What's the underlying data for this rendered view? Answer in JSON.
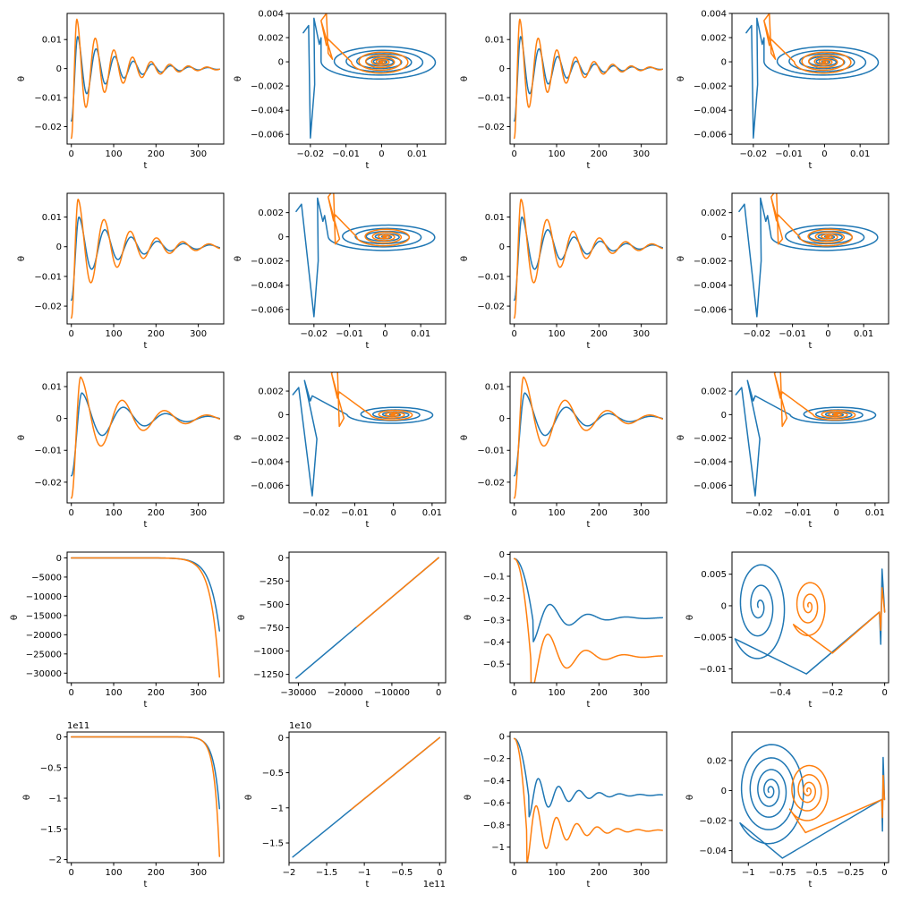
{
  "figure": {
    "colors": [
      "#1f77b4",
      "#ff7f0e"
    ]
  },
  "chart_data": [
    {
      "type": "line",
      "kind": "time",
      "xlabel": "t",
      "ylabel": "θ",
      "xlim": [
        -10,
        360
      ],
      "ylim": [
        -0.026,
        0.019
      ],
      "xticks": [
        0,
        100,
        200,
        300
      ],
      "yticks": [
        -0.02,
        -0.01,
        0.0,
        0.01
      ],
      "series": [
        {
          "y0": -0.018,
          "peak": 0.011,
          "lag": 15,
          "period": 44,
          "tau": 90,
          "end": 0.0
        },
        {
          "y0": -0.024,
          "peak": 0.017,
          "lag": 13,
          "period": 44,
          "tau": 90,
          "end": 0.0
        }
      ]
    },
    {
      "type": "line",
      "kind": "phase",
      "xlabel": "t",
      "ylabel": "θ",
      "xlim": [
        -0.026,
        0.018
      ],
      "ylim": [
        -0.0068,
        0.004
      ],
      "xticks": [
        -0.02,
        -0.01,
        0.0,
        0.01
      ],
      "yticks": [
        -0.006,
        -0.004,
        -0.002,
        0.0,
        0.002,
        0.004
      ],
      "series": [
        {
          "rx": 0.017,
          "ry": 0.0015,
          "turns": 7,
          "center": [
            0.0,
            0.0
          ],
          "start": [
            -0.022,
            0.0024
          ],
          "dip": [
            -0.02,
            -0.0063
          ],
          "top": [
            -0.019,
            0.0036
          ]
        },
        {
          "rx": 0.0085,
          "ry": 0.001,
          "turns": 6,
          "center": [
            0.0,
            0.0
          ],
          "start": [
            -0.017,
            0.0034
          ],
          "dip": [
            -0.015,
            0.0007
          ],
          "top": [
            -0.017,
            0.0034
          ]
        }
      ]
    },
    {
      "type": "line",
      "kind": "time",
      "xlabel": "t",
      "ylabel": "θ",
      "xlim": [
        -10,
        360
      ],
      "ylim": [
        -0.026,
        0.019
      ],
      "xticks": [
        0,
        100,
        200,
        300
      ],
      "yticks": [
        -0.02,
        -0.01,
        0.0,
        0.01
      ],
      "series": [
        {
          "y0": -0.018,
          "peak": 0.011,
          "lag": 15,
          "period": 44,
          "tau": 90,
          "end": 0.0
        },
        {
          "y0": -0.024,
          "peak": 0.017,
          "lag": 13,
          "period": 44,
          "tau": 90,
          "end": 0.0
        }
      ]
    },
    {
      "type": "line",
      "kind": "phase",
      "xlabel": "t",
      "ylabel": "θ",
      "xlim": [
        -0.026,
        0.018
      ],
      "ylim": [
        -0.0068,
        0.004
      ],
      "xticks": [
        -0.02,
        -0.01,
        0.0,
        0.01
      ],
      "yticks": [
        -0.006,
        -0.004,
        -0.002,
        0.0,
        0.002,
        0.004
      ],
      "series": [
        {
          "rx": 0.017,
          "ry": 0.0015,
          "turns": 7,
          "center": [
            0.0,
            0.0
          ],
          "start": [
            -0.022,
            0.0024
          ],
          "dip": [
            -0.02,
            -0.0063
          ],
          "top": [
            -0.019,
            0.0036
          ]
        },
        {
          "rx": 0.0085,
          "ry": 0.001,
          "turns": 6,
          "center": [
            0.0,
            0.0
          ],
          "start": [
            -0.017,
            0.0034
          ],
          "dip": [
            -0.015,
            0.0007
          ],
          "top": [
            -0.017,
            0.0034
          ]
        }
      ]
    },
    {
      "type": "line",
      "kind": "time",
      "xlabel": "t",
      "ylabel": "θ",
      "xlim": [
        -10,
        360
      ],
      "ylim": [
        -0.026,
        0.018
      ],
      "xticks": [
        0,
        100,
        200,
        300
      ],
      "yticks": [
        -0.02,
        -0.01,
        0.0,
        0.01
      ],
      "series": [
        {
          "y0": -0.018,
          "peak": 0.01,
          "lag": 18,
          "period": 62,
          "tau": 110,
          "end": 0.0
        },
        {
          "y0": -0.024,
          "peak": 0.016,
          "lag": 16,
          "period": 62,
          "tau": 110,
          "end": 0.0
        }
      ]
    },
    {
      "type": "line",
      "kind": "phase",
      "xlabel": "t",
      "ylabel": "θ",
      "xlim": [
        -0.027,
        0.017
      ],
      "ylim": [
        -0.0072,
        0.0036
      ],
      "xticks": [
        -0.02,
        -0.01,
        0.0,
        0.01
      ],
      "yticks": [
        -0.006,
        -0.004,
        -0.002,
        0.0,
        0.002
      ],
      "series": [
        {
          "rx": 0.016,
          "ry": 0.0012,
          "turns": 6,
          "center": [
            0.0,
            0.0
          ],
          "start": [
            -0.025,
            0.0021
          ],
          "dip": [
            -0.02,
            -0.0066
          ],
          "top": [
            -0.019,
            0.0032
          ]
        },
        {
          "rx": 0.008,
          "ry": 0.0008,
          "turns": 5,
          "center": [
            0.0,
            0.0
          ],
          "start": [
            -0.016,
            0.0033
          ],
          "dip": [
            -0.014,
            -0.0006
          ],
          "top": [
            -0.016,
            0.0033
          ]
        }
      ]
    },
    {
      "type": "line",
      "kind": "time",
      "xlabel": "t",
      "ylabel": "θ",
      "xlim": [
        -10,
        360
      ],
      "ylim": [
        -0.026,
        0.018
      ],
      "xticks": [
        0,
        100,
        200,
        300
      ],
      "yticks": [
        -0.02,
        -0.01,
        0.0,
        0.01
      ],
      "series": [
        {
          "y0": -0.018,
          "peak": 0.01,
          "lag": 18,
          "period": 62,
          "tau": 110,
          "end": 0.0
        },
        {
          "y0": -0.024,
          "peak": 0.016,
          "lag": 16,
          "period": 62,
          "tau": 110,
          "end": 0.0
        }
      ]
    },
    {
      "type": "line",
      "kind": "phase",
      "xlabel": "t",
      "ylabel": "θ",
      "xlim": [
        -0.027,
        0.017
      ],
      "ylim": [
        -0.0072,
        0.0036
      ],
      "xticks": [
        -0.02,
        -0.01,
        0.0,
        0.01
      ],
      "yticks": [
        -0.006,
        -0.004,
        -0.002,
        0.0,
        0.002
      ],
      "series": [
        {
          "rx": 0.016,
          "ry": 0.0012,
          "turns": 6,
          "center": [
            0.0,
            0.0
          ],
          "start": [
            -0.025,
            0.0021
          ],
          "dip": [
            -0.02,
            -0.0066
          ],
          "top": [
            -0.019,
            0.0032
          ]
        },
        {
          "rx": 0.008,
          "ry": 0.0008,
          "turns": 5,
          "center": [
            0.0,
            0.0
          ],
          "start": [
            -0.016,
            0.0033
          ],
          "dip": [
            -0.014,
            -0.0006
          ],
          "top": [
            -0.016,
            0.0033
          ]
        }
      ]
    },
    {
      "type": "line",
      "kind": "time",
      "xlabel": "t",
      "ylabel": "θ",
      "xlim": [
        -10,
        360
      ],
      "ylim": [
        -0.0265,
        0.0145
      ],
      "xticks": [
        0,
        100,
        200,
        300
      ],
      "yticks": [
        -0.02,
        -0.01,
        0.0,
        0.01
      ],
      "series": [
        {
          "y0": -0.018,
          "peak": 0.008,
          "lag": 25,
          "period": 100,
          "tau": 120,
          "end": 0.0
        },
        {
          "y0": -0.025,
          "peak": 0.013,
          "lag": 22,
          "period": 100,
          "tau": 120,
          "end": 0.0
        }
      ]
    },
    {
      "type": "line",
      "kind": "phase",
      "xlabel": "t",
      "ylabel": "θ",
      "xlim": [
        -0.027,
        0.0135
      ],
      "ylim": [
        -0.0075,
        0.0036
      ],
      "xticks": [
        -0.02,
        -0.01,
        0.0,
        0.01
      ],
      "yticks": [
        -0.006,
        -0.004,
        -0.002,
        0.0,
        0.002
      ],
      "series": [
        {
          "rx": 0.012,
          "ry": 0.0008,
          "turns": 5,
          "center": [
            0.0,
            0.0
          ],
          "start": [
            -0.026,
            0.0017
          ],
          "dip": [
            -0.021,
            -0.0069
          ],
          "top": [
            -0.023,
            0.0029
          ]
        },
        {
          "rx": 0.006,
          "ry": 0.0005,
          "turns": 4,
          "center": [
            0.0,
            0.0
          ],
          "start": [
            -0.016,
            0.0035
          ],
          "dip": [
            -0.014,
            -0.001
          ],
          "top": [
            -0.016,
            0.0035
          ]
        }
      ]
    },
    {
      "type": "line",
      "kind": "time",
      "xlabel": "t",
      "ylabel": "θ",
      "xlim": [
        -10,
        360
      ],
      "ylim": [
        -0.0265,
        0.0145
      ],
      "xticks": [
        0,
        100,
        200,
        300
      ],
      "yticks": [
        -0.02,
        -0.01,
        0.0,
        0.01
      ],
      "series": [
        {
          "y0": -0.018,
          "peak": 0.008,
          "lag": 25,
          "period": 100,
          "tau": 120,
          "end": 0.0
        },
        {
          "y0": -0.025,
          "peak": 0.013,
          "lag": 22,
          "period": 100,
          "tau": 120,
          "end": 0.0
        }
      ]
    },
    {
      "type": "line",
      "kind": "phase",
      "xlabel": "t",
      "ylabel": "θ",
      "xlim": [
        -0.027,
        0.0135
      ],
      "ylim": [
        -0.0075,
        0.0036
      ],
      "xticks": [
        -0.02,
        -0.01,
        0.0,
        0.01
      ],
      "yticks": [
        -0.006,
        -0.004,
        -0.002,
        0.0,
        0.002
      ],
      "series": [
        {
          "rx": 0.012,
          "ry": 0.0008,
          "turns": 5,
          "center": [
            0.0,
            0.0
          ],
          "start": [
            -0.026,
            0.0017
          ],
          "dip": [
            -0.021,
            -0.0069
          ],
          "top": [
            -0.023,
            0.0029
          ]
        },
        {
          "rx": 0.006,
          "ry": 0.0005,
          "turns": 4,
          "center": [
            0.0,
            0.0
          ],
          "start": [
            -0.016,
            0.0035
          ],
          "dip": [
            -0.014,
            -0.001
          ],
          "top": [
            -0.016,
            0.0035
          ]
        }
      ]
    },
    {
      "type": "line",
      "kind": "grow",
      "xlabel": "t",
      "ylabel": "θ",
      "xlim": [
        -10,
        360
      ],
      "ylim": [
        -32500,
        1500
      ],
      "xticks": [
        0,
        100,
        200,
        300
      ],
      "yticks": [
        0,
        -5000,
        -10000,
        -15000,
        -20000,
        -25000,
        -30000
      ],
      "series": [
        {
          "end": -19000,
          "k": 22
        },
        {
          "end": -31000,
          "k": 20
        }
      ]
    },
    {
      "type": "line",
      "kind": "diag",
      "xlabel": "t",
      "ylabel": "θ",
      "xlim": [
        -32000,
        1500
      ],
      "ylim": [
        -1340,
        60
      ],
      "xticks": [
        -30000,
        -20000,
        -10000,
        0
      ],
      "yticks": [
        0,
        -250,
        -500,
        -750,
        -1000,
        -1250
      ],
      "series": [
        {
          "from": [
            -30500,
            -1290
          ],
          "to": [
            0,
            0
          ]
        },
        {
          "from": [
            -17500,
            -740
          ],
          "to": [
            0,
            0
          ]
        }
      ]
    },
    {
      "type": "line",
      "kind": "settle",
      "xlabel": "t",
      "ylabel": "θ",
      "xlim": [
        -10,
        360
      ],
      "ylim": [
        -0.585,
        0.01
      ],
      "xticks": [
        0,
        100,
        200,
        300
      ],
      "yticks": [
        0.0,
        -0.1,
        -0.2,
        -0.3,
        -0.4,
        -0.5
      ],
      "series": [
        {
          "y0": -0.02,
          "final": -0.29,
          "amp": 0.11,
          "t0": 45,
          "period": 90,
          "tau": 70
        },
        {
          "y0": -0.02,
          "final": -0.465,
          "amp": 0.18,
          "t0": 40,
          "period": 90,
          "tau": 70
        }
      ]
    },
    {
      "type": "line",
      "kind": "spiral",
      "xlabel": "t",
      "ylabel": "θ",
      "xlim": [
        -0.585,
        0.015
      ],
      "ylim": [
        -0.0122,
        0.0085
      ],
      "xticks": [
        -0.4,
        -0.2,
        0.0
      ],
      "yticks": [
        -0.01,
        -0.005,
        0.0,
        0.005
      ],
      "series": [
        {
          "center": [
            -0.48,
            0.0
          ],
          "rx": 0.11,
          "ry": 0.0085,
          "turns": 3,
          "start": [
            0.0,
            -0.001
          ],
          "bottom": [
            -0.3,
            -0.0108
          ]
        },
        {
          "center": [
            -0.29,
            0.0
          ],
          "rx": 0.07,
          "ry": 0.0048,
          "turns": 3,
          "start": [
            0.0,
            -0.001
          ],
          "bottom": [
            -0.2,
            -0.0075
          ]
        }
      ]
    },
    {
      "type": "line",
      "kind": "grow",
      "xlabel": "t",
      "ylabel": "θ",
      "offset": "1e11",
      "xlim": [
        -10,
        360
      ],
      "ylim": [
        -2.05,
        0.08
      ],
      "xticks": [
        0,
        100,
        200,
        300
      ],
      "yticks": [
        0.0,
        -0.5,
        -1.0,
        -1.5,
        -2.0
      ],
      "series": [
        {
          "end": -1.17,
          "k": 14
        },
        {
          "end": -1.95,
          "k": 12
        }
      ]
    },
    {
      "type": "line",
      "kind": "diag",
      "xlabel": "t",
      "ylabel": "θ",
      "offset": "1e10",
      "xoffset": "1e11",
      "xlim": [
        -2.0,
        0.08
      ],
      "ylim": [
        -1.78,
        0.08
      ],
      "xticks": [
        -2.0,
        -1.5,
        -1.0,
        -0.5,
        0.0
      ],
      "yticks": [
        0.0,
        -0.5,
        -1.0,
        -1.5
      ],
      "series": [
        {
          "from": [
            -1.95,
            -1.7
          ],
          "to": [
            0.0,
            0.0
          ]
        },
        {
          "from": [
            -1.17,
            -1.02
          ],
          "to": [
            0.0,
            0.0
          ]
        }
      ]
    },
    {
      "type": "line",
      "kind": "settle",
      "xlabel": "t",
      "ylabel": "θ",
      "xlim": [
        -10,
        360
      ],
      "ylim": [
        -1.14,
        0.04
      ],
      "xticks": [
        0,
        100,
        200,
        300
      ],
      "yticks": [
        0.0,
        -0.2,
        -0.4,
        -0.6,
        -0.8,
        -1.0
      ],
      "series": [
        {
          "y0": -0.02,
          "final": -0.53,
          "amp": 0.2,
          "t0": 35,
          "period": 48,
          "tau": 75
        },
        {
          "y0": -0.02,
          "final": -0.85,
          "amp": 0.3,
          "t0": 30,
          "period": 48,
          "tau": 75
        }
      ]
    },
    {
      "type": "line",
      "kind": "spiral",
      "xlabel": "t",
      "ylabel": "θ",
      "xlim": [
        -1.12,
        0.03
      ],
      "ylim": [
        -0.048,
        0.039
      ],
      "xticks": [
        -1.0,
        -0.75,
        -0.5,
        -0.25,
        0.0
      ],
      "yticks": [
        -0.04,
        -0.02,
        0.0,
        0.02
      ],
      "series": [
        {
          "center": [
            -0.84,
            0.0
          ],
          "rx": 0.26,
          "ry": 0.035,
          "turns": 5,
          "start": [
            0.0,
            -0.006
          ],
          "bottom": [
            -0.75,
            -0.045
          ]
        },
        {
          "center": [
            -0.56,
            0.0
          ],
          "rx": 0.16,
          "ry": 0.02,
          "turns": 4,
          "start": [
            0.0,
            -0.006
          ],
          "bottom": [
            -0.58,
            -0.028
          ]
        }
      ]
    }
  ]
}
